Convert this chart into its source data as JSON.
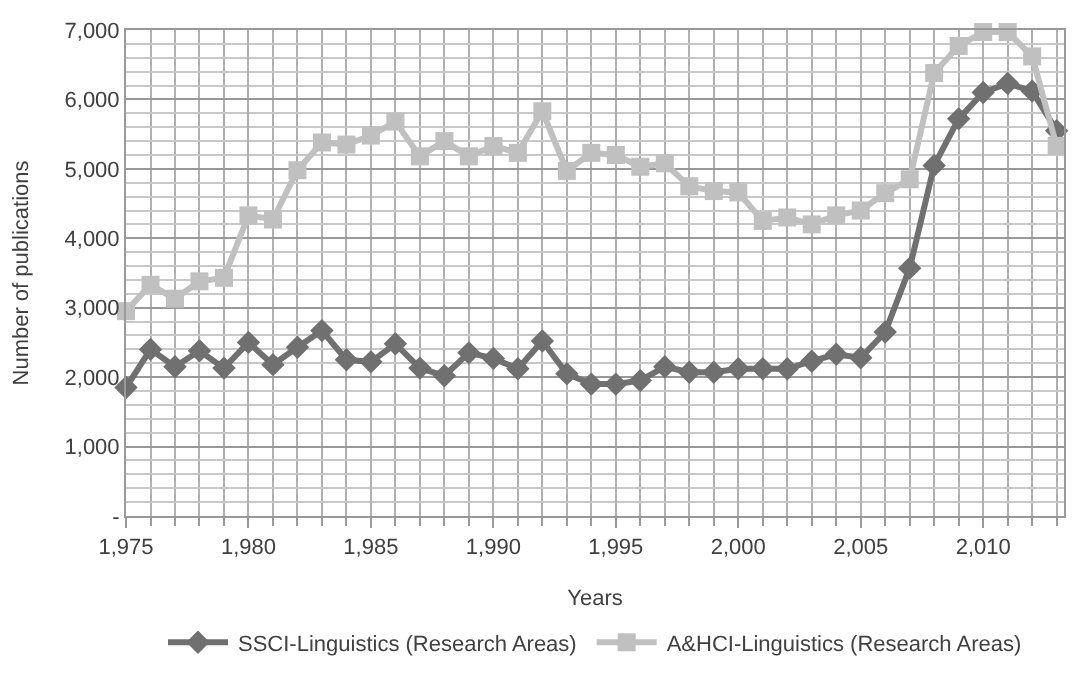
{
  "chart_data": {
    "type": "line",
    "xlabel": "Years",
    "ylabel": "Number of publications",
    "x": [
      1975,
      1976,
      1977,
      1978,
      1979,
      1980,
      1981,
      1982,
      1983,
      1984,
      1985,
      1986,
      1987,
      1988,
      1989,
      1990,
      1991,
      1992,
      1993,
      1994,
      1995,
      1996,
      1997,
      1998,
      1999,
      2000,
      2001,
      2002,
      2003,
      2004,
      2005,
      2006,
      2007,
      2008,
      2009,
      2010,
      2011,
      2012,
      2013
    ],
    "series": [
      {
        "name": "SSCI-Linguistics (Research Areas)",
        "color": "#707070",
        "marker": "diamond",
        "values": [
          1850,
          2400,
          2150,
          2380,
          2130,
          2500,
          2180,
          2430,
          2670,
          2250,
          2220,
          2480,
          2130,
          2020,
          2350,
          2270,
          2120,
          2520,
          2050,
          1900,
          1900,
          1950,
          2150,
          2070,
          2070,
          2120,
          2120,
          2120,
          2230,
          2330,
          2280,
          2650,
          3570,
          5050,
          5720,
          6100,
          6230,
          6120,
          5550
        ]
      },
      {
        "name": "A&HCI-Linguistics (Research Areas)",
        "color": "#c0c0c0",
        "marker": "square",
        "values": [
          2950,
          3330,
          3130,
          3380,
          3430,
          4330,
          4270,
          4980,
          5380,
          5350,
          5480,
          5680,
          5180,
          5400,
          5180,
          5330,
          5230,
          5830,
          4970,
          5230,
          5200,
          5030,
          5080,
          4750,
          4680,
          4660,
          4250,
          4300,
          4200,
          4330,
          4400,
          4650,
          4850,
          6380,
          6770,
          6970,
          6970,
          6620,
          5330
        ]
      }
    ],
    "xlim": [
      1975,
      2013.3
    ],
    "xticks": [
      {
        "value": 1975,
        "label": "1,975"
      },
      {
        "value": 1980,
        "label": "1,980"
      },
      {
        "value": 1985,
        "label": "1,985"
      },
      {
        "value": 1990,
        "label": "1,990"
      },
      {
        "value": 1995,
        "label": "1,995"
      },
      {
        "value": 2000,
        "label": "2,000"
      },
      {
        "value": 2005,
        "label": "2,005"
      },
      {
        "value": 2010,
        "label": "2,010"
      }
    ],
    "ylim": [
      0,
      7000
    ],
    "yticks": [
      {
        "value": 0,
        "label": "-"
      },
      {
        "value": 1000,
        "label": "1,000"
      },
      {
        "value": 2000,
        "label": "2,000"
      },
      {
        "value": 3000,
        "label": "3,000"
      },
      {
        "value": 4000,
        "label": "4,000"
      },
      {
        "value": 5000,
        "label": "5,000"
      },
      {
        "value": 6000,
        "label": "6,000"
      },
      {
        "value": 7000,
        "label": "7,000"
      }
    ],
    "grid": true,
    "legend": "bottom",
    "line_style": "solid"
  }
}
